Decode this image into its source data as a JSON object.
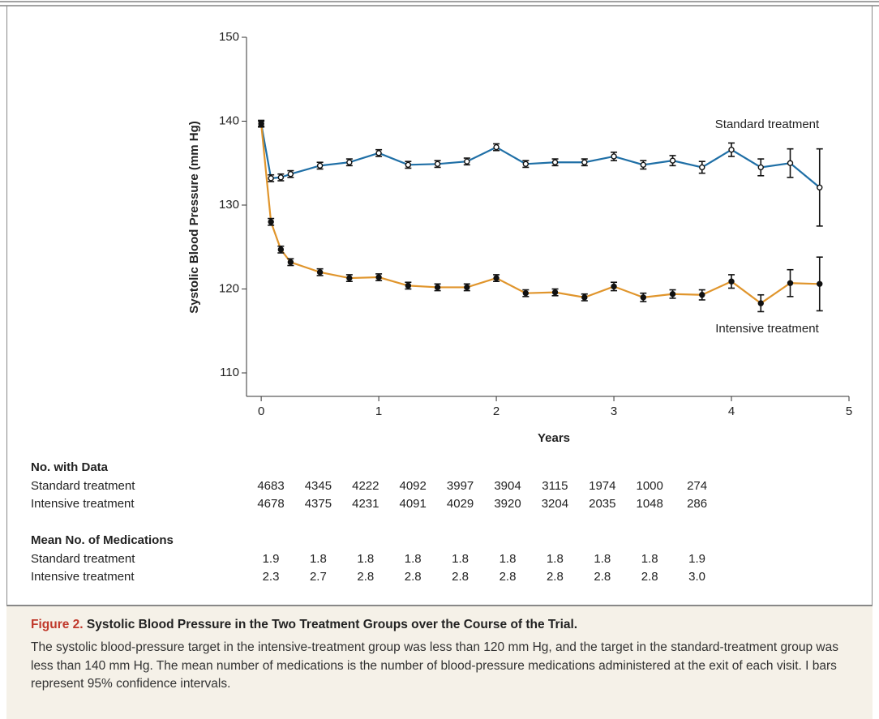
{
  "chart_data": {
    "type": "line",
    "xlabel": "Years",
    "ylabel": "Systolic Blood Pressure (mm Hg)",
    "x": [
      0,
      0.083,
      0.167,
      0.25,
      0.5,
      0.75,
      1,
      1.25,
      1.5,
      1.75,
      2,
      2.25,
      2.5,
      2.75,
      3,
      3.25,
      3.5,
      3.75,
      4,
      4.25,
      4.5,
      4.75
    ],
    "series": [
      {
        "name": "Standard treatment",
        "color": "#1f6fa6",
        "marker": "open",
        "values": [
          139.7,
          133.2,
          133.3,
          133.7,
          134.7,
          135.1,
          136.2,
          134.8,
          134.9,
          135.2,
          136.9,
          134.9,
          135.1,
          135.1,
          135.8,
          134.8,
          135.3,
          134.5,
          136.6,
          134.5,
          135.0,
          132.1
        ],
        "errors": [
          0.4,
          0.4,
          0.4,
          0.4,
          0.4,
          0.4,
          0.4,
          0.4,
          0.4,
          0.4,
          0.4,
          0.4,
          0.4,
          0.4,
          0.5,
          0.5,
          0.6,
          0.7,
          0.8,
          1.0,
          1.7,
          4.6
        ]
      },
      {
        "name": "Intensive treatment",
        "color": "#e0952c",
        "marker": "filled",
        "values": [
          139.7,
          128.0,
          124.7,
          123.2,
          122.0,
          121.3,
          121.4,
          120.4,
          120.2,
          120.2,
          121.3,
          119.5,
          119.6,
          119.0,
          120.3,
          119.0,
          119.4,
          119.3,
          120.9,
          118.3,
          120.7,
          120.6
        ],
        "errors": [
          0.3,
          0.4,
          0.4,
          0.4,
          0.4,
          0.4,
          0.4,
          0.4,
          0.4,
          0.4,
          0.4,
          0.4,
          0.4,
          0.4,
          0.5,
          0.5,
          0.5,
          0.6,
          0.8,
          1.0,
          1.6,
          3.2
        ]
      }
    ],
    "xlim": [
      -0.125,
      5
    ],
    "xticks": [
      0,
      1,
      2,
      3,
      4,
      5
    ],
    "ylim": [
      107.2,
      150
    ],
    "yticks": [
      110,
      120,
      130,
      140,
      150
    ]
  },
  "tables": [
    {
      "title": "No. with Data",
      "rows": [
        {
          "label": "Standard treatment",
          "values": [
            "4683",
            "4345",
            "4222",
            "4092",
            "3997",
            "3904",
            "3115",
            "1974",
            "1000",
            "274"
          ]
        },
        {
          "label": "Intensive treatment",
          "values": [
            "4678",
            "4375",
            "4231",
            "4091",
            "4029",
            "3920",
            "3204",
            "2035",
            "1048",
            "286"
          ]
        }
      ]
    },
    {
      "title": "Mean No. of Medications",
      "rows": [
        {
          "label": "Standard treatment",
          "values": [
            "1.9",
            "1.8",
            "1.8",
            "1.8",
            "1.8",
            "1.8",
            "1.8",
            "1.8",
            "1.8",
            "1.9"
          ]
        },
        {
          "label": "Intensive treatment",
          "values": [
            "2.3",
            "2.7",
            "2.8",
            "2.8",
            "2.8",
            "2.8",
            "2.8",
            "2.8",
            "2.8",
            "3.0"
          ]
        }
      ]
    }
  ],
  "caption": {
    "label": "Figure 2.",
    "title": "Systolic Blood Pressure in the Two Treatment Groups over the Course of the Trial.",
    "body": "The systolic blood-pressure target in the intensive-treatment group was less than 120 mm Hg, and the target in the standard-treatment group was less than 140 mm Hg. The mean number of medications is the number of blood-pressure medications administered at the exit of each visit. I bars represent 95% confidence intervals."
  }
}
